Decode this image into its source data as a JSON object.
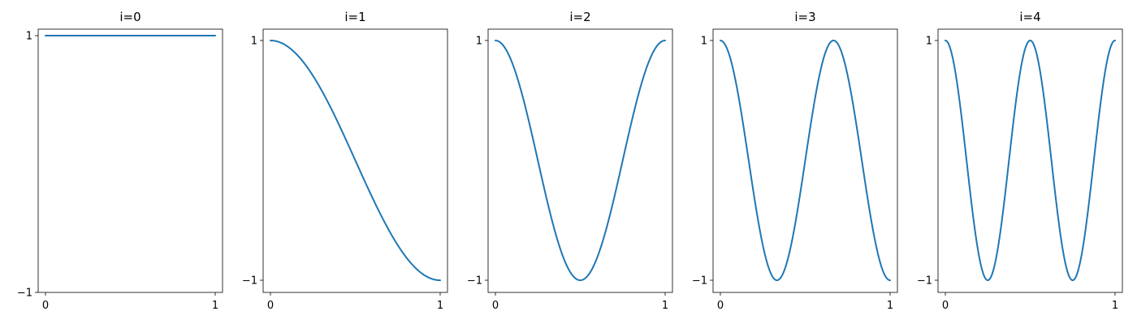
{
  "chart_data": [
    {
      "type": "line",
      "title": "i=0",
      "frequency_index": 0,
      "function": "cos(i*pi*x)",
      "x_range": [
        0,
        1
      ],
      "xlim": [
        0,
        1
      ],
      "ylim": [
        -1,
        1
      ],
      "xticks": [
        0,
        1
      ],
      "xtick_labels": [
        "0",
        "1"
      ],
      "yticks": [
        -1,
        1
      ],
      "ytick_labels": [
        "−1",
        "1"
      ],
      "series": [
        {
          "name": "i=0",
          "color": "#1f77b4"
        }
      ]
    },
    {
      "type": "line",
      "title": "i=1",
      "frequency_index": 1,
      "function": "cos(i*pi*x)",
      "x_range": [
        0,
        1
      ],
      "xlim": [
        0,
        1
      ],
      "ylim": [
        -1,
        1
      ],
      "xticks": [
        0,
        1
      ],
      "xtick_labels": [
        "0",
        "1"
      ],
      "yticks": [
        -1,
        1
      ],
      "ytick_labels": [
        "−1",
        "1"
      ],
      "series": [
        {
          "name": "i=1",
          "color": "#1f77b4"
        }
      ]
    },
    {
      "type": "line",
      "title": "i=2",
      "frequency_index": 2,
      "function": "cos(i*pi*x)",
      "x_range": [
        0,
        1
      ],
      "xlim": [
        0,
        1
      ],
      "ylim": [
        -1,
        1
      ],
      "xticks": [
        0,
        1
      ],
      "xtick_labels": [
        "0",
        "1"
      ],
      "yticks": [
        -1,
        1
      ],
      "ytick_labels": [
        "−1",
        "1"
      ],
      "series": [
        {
          "name": "i=2",
          "color": "#1f77b4"
        }
      ]
    },
    {
      "type": "line",
      "title": "i=3",
      "frequency_index": 3,
      "function": "cos(i*pi*x)",
      "x_range": [
        0,
        1
      ],
      "xlim": [
        0,
        1
      ],
      "ylim": [
        -1,
        1
      ],
      "xticks": [
        0,
        1
      ],
      "xtick_labels": [
        "0",
        "1"
      ],
      "yticks": [
        -1,
        1
      ],
      "ytick_labels": [
        "−1",
        "1"
      ],
      "series": [
        {
          "name": "i=3",
          "color": "#1f77b4"
        }
      ]
    },
    {
      "type": "line",
      "title": "i=4",
      "frequency_index": 4,
      "function": "cos(i*pi*x)",
      "x_range": [
        0,
        1
      ],
      "xlim": [
        0,
        1
      ],
      "ylim": [
        -1,
        1
      ],
      "xticks": [
        0,
        1
      ],
      "xtick_labels": [
        "0",
        "1"
      ],
      "yticks": [
        -1,
        1
      ],
      "ytick_labels": [
        "−1",
        "1"
      ],
      "series": [
        {
          "name": "i=4",
          "color": "#1f77b4"
        }
      ]
    }
  ]
}
